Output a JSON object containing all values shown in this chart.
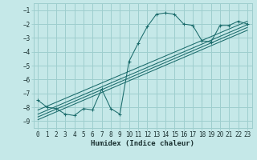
{
  "xlabel": "Humidex (Indice chaleur)",
  "bg_color": "#c5e8e8",
  "grid_color": "#9ecece",
  "line_color": "#1a6b6b",
  "x_data": [
    0,
    1,
    2,
    3,
    4,
    5,
    6,
    7,
    8,
    9,
    10,
    11,
    12,
    13,
    14,
    15,
    16,
    17,
    18,
    19,
    20,
    21,
    22,
    23
  ],
  "y_main": [
    -7.5,
    -8.0,
    -8.1,
    -8.5,
    -8.6,
    -8.1,
    -8.2,
    -6.7,
    -8.1,
    -8.5,
    -4.7,
    -3.4,
    -2.2,
    -1.3,
    -1.2,
    -1.3,
    -2.0,
    -2.1,
    -3.2,
    -3.3,
    -2.1,
    -2.1,
    -1.8,
    -2.0
  ],
  "reg_lines": [
    {
      "x0": 0,
      "y0": -8.2,
      "x1": 23,
      "y1": -1.8
    },
    {
      "x0": 0,
      "y0": -8.5,
      "x1": 23,
      "y1": -2.05
    },
    {
      "x0": 0,
      "y0": -8.7,
      "x1": 23,
      "y1": -2.25
    },
    {
      "x0": 0,
      "y0": -8.9,
      "x1": 23,
      "y1": -2.45
    }
  ],
  "xlim": [
    -0.5,
    23.5
  ],
  "ylim": [
    -9.5,
    -0.5
  ],
  "xticks": [
    0,
    1,
    2,
    3,
    4,
    5,
    6,
    7,
    8,
    9,
    10,
    11,
    12,
    13,
    14,
    15,
    16,
    17,
    18,
    19,
    20,
    21,
    22,
    23
  ],
  "yticks": [
    -9,
    -8,
    -7,
    -6,
    -5,
    -4,
    -3,
    -2,
    -1
  ],
  "tick_fontsize": 5.5,
  "label_fontsize": 6.5
}
